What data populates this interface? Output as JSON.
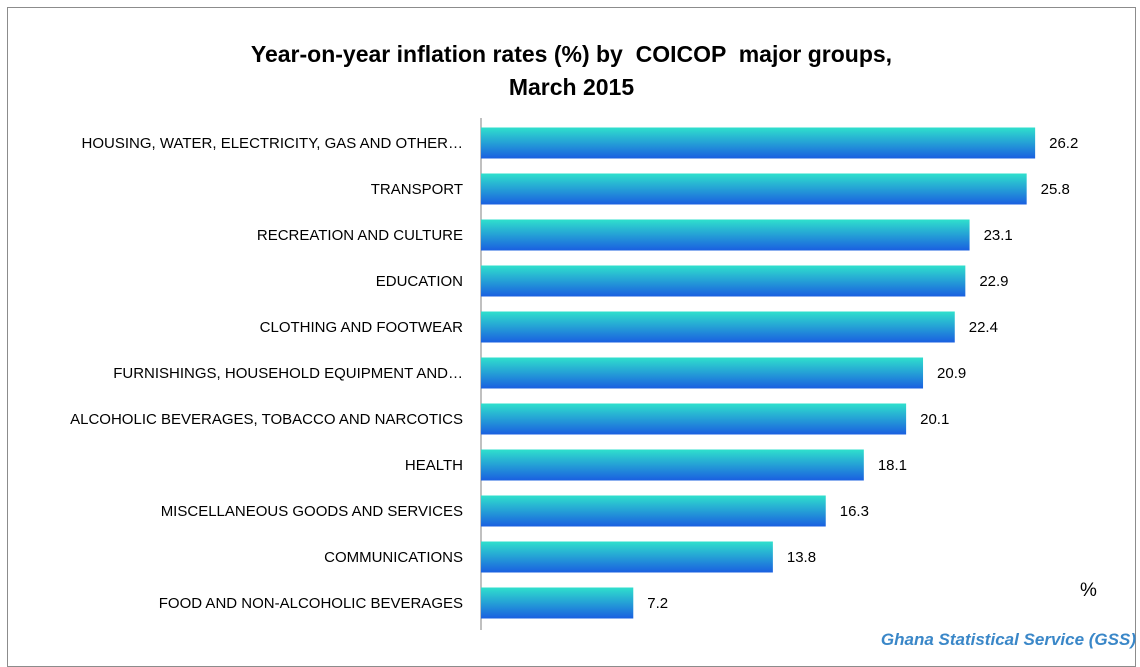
{
  "chart_data": {
    "type": "bar",
    "orientation": "horizontal",
    "title_line1": "Year-on-year inflation rates (%) by  COICOP  major groups,",
    "title_line2": "March 2015",
    "categories": [
      "HOUSING, WATER, ELECTRICITY, GAS AND OTHER…",
      "TRANSPORT",
      "RECREATION AND CULTURE",
      "EDUCATION",
      "CLOTHING AND FOOTWEAR",
      "FURNISHINGS, HOUSEHOLD EQUIPMENT AND…",
      "ALCOHOLIC BEVERAGES, TOBACCO AND NARCOTICS",
      "HEALTH",
      "MISCELLANEOUS GOODS AND SERVICES",
      "COMMUNICATIONS",
      "FOOD AND NON-ALCOHOLIC BEVERAGES"
    ],
    "values": [
      26.2,
      25.8,
      23.1,
      22.9,
      22.4,
      20.9,
      20.1,
      18.1,
      16.3,
      13.8,
      7.2
    ],
    "value_labels": [
      "26.2",
      "25.8",
      "23.1",
      "22.9",
      "22.4",
      "20.9",
      "20.1",
      "18.1",
      "16.3",
      "13.8",
      "7.2"
    ],
    "xlim": [
      0,
      30
    ],
    "unit_label": "%",
    "grid": false,
    "legend": "none",
    "colors": {
      "bar_top": "#2fe0cc",
      "bar_bottom": "#1a5fe0",
      "axis": "#808080"
    }
  },
  "source": "Ghana Statistical Service (GSS)"
}
